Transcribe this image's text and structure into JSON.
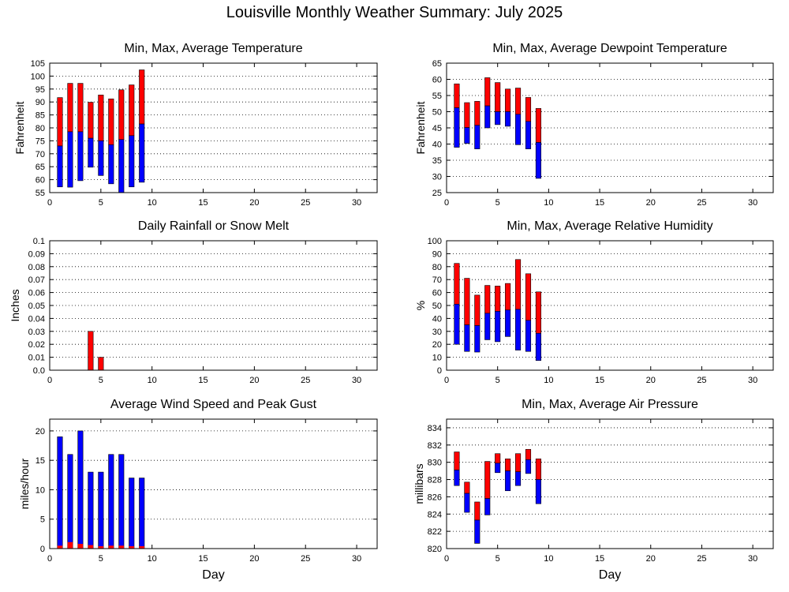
{
  "title": "Louisville Monthly Weather Summary: July 2025",
  "colors": {
    "max_part": "#ff0000",
    "min_part": "#0000ff",
    "outline": "#000000",
    "grid": "#000000"
  },
  "chart_data": [
    {
      "id": "temperature",
      "type": "bar",
      "style": "floating-stacked",
      "title": "Min, Max, Average Temperature",
      "xlabel": "",
      "ylabel": "Fahrenheit",
      "xlim": [
        0,
        32
      ],
      "ylim": [
        55,
        105
      ],
      "xticks": [
        0,
        5,
        10,
        15,
        20,
        25,
        30
      ],
      "yticks": [
        55,
        60,
        65,
        70,
        75,
        80,
        85,
        90,
        95,
        100,
        105
      ],
      "grid": "horizontal dotted",
      "legend": "none",
      "x": [
        1,
        2,
        3,
        4,
        5,
        6,
        7,
        8,
        9
      ],
      "series": [
        {
          "name": "min",
          "values": [
            57.2,
            57.1,
            59.6,
            64.8,
            61.6,
            58.4,
            55.0,
            57.2,
            59.0
          ]
        },
        {
          "name": "average",
          "values": [
            73.0,
            78.5,
            78.5,
            76.0,
            75.0,
            73.5,
            75.5,
            77.0,
            81.5
          ]
        },
        {
          "name": "max",
          "values": [
            91.7,
            97.2,
            97.2,
            89.9,
            92.7,
            91.2,
            94.7,
            96.6,
            102.4
          ]
        }
      ]
    },
    {
      "id": "dewpoint",
      "type": "bar",
      "style": "floating-stacked",
      "title": "Min, Max, Average Dewpoint Temperature",
      "xlabel": "",
      "ylabel": "Fahrenheit",
      "xlim": [
        0,
        32
      ],
      "ylim": [
        25,
        65
      ],
      "xticks": [
        0,
        5,
        10,
        15,
        20,
        25,
        30
      ],
      "yticks": [
        25,
        30,
        35,
        40,
        45,
        50,
        55,
        60,
        65
      ],
      "grid": "horizontal dotted",
      "legend": "none",
      "x": [
        1,
        2,
        3,
        4,
        5,
        6,
        7,
        8,
        9
      ],
      "series": [
        {
          "name": "min",
          "values": [
            39.0,
            40.2,
            38.5,
            45.0,
            46.0,
            45.5,
            39.8,
            38.5,
            29.4
          ]
        },
        {
          "name": "average",
          "values": [
            51.2,
            45.1,
            45.8,
            51.8,
            50.0,
            50.0,
            49.2,
            47.0,
            40.5
          ]
        },
        {
          "name": "max",
          "values": [
            58.6,
            52.8,
            53.2,
            60.5,
            59.0,
            57.0,
            57.3,
            54.4,
            51.0
          ]
        }
      ]
    },
    {
      "id": "rainfall",
      "type": "bar",
      "style": "floating-stacked",
      "title": "Daily Rainfall or Snow Melt",
      "xlabel": "",
      "ylabel": "Inches",
      "xlim": [
        0,
        32
      ],
      "ylim": [
        0,
        0.1
      ],
      "xticks": [
        0,
        5,
        10,
        15,
        20,
        25,
        30
      ],
      "yticks": [
        "0.0",
        "0.01",
        "0.02",
        "0.03",
        "0.04",
        "0.05",
        "0.06",
        "0.07",
        "0.08",
        "0.09",
        "0.1"
      ],
      "grid": "horizontal dotted",
      "legend": "none",
      "x": [
        1,
        2,
        3,
        4,
        5,
        6,
        7,
        8,
        9
      ],
      "series": [
        {
          "name": "min",
          "values": [
            0,
            0,
            0,
            0,
            0,
            0,
            0,
            0,
            0
          ]
        },
        {
          "name": "average",
          "values": [
            0,
            0,
            0,
            0,
            0,
            0,
            0,
            0,
            0
          ]
        },
        {
          "name": "max",
          "values": [
            0,
            0,
            0,
            0.03,
            0.01,
            0,
            0,
            0,
            0
          ]
        }
      ]
    },
    {
      "id": "humidity",
      "type": "bar",
      "style": "floating-stacked",
      "title": "Min, Max, Average Relative Humidity",
      "xlabel": "",
      "ylabel": "%",
      "xlim": [
        0,
        32
      ],
      "ylim": [
        0,
        100
      ],
      "xticks": [
        0,
        5,
        10,
        15,
        20,
        25,
        30
      ],
      "yticks": [
        0,
        10,
        20,
        30,
        40,
        50,
        60,
        70,
        80,
        90,
        100
      ],
      "grid": "horizontal dotted",
      "legend": "none",
      "x": [
        1,
        2,
        3,
        4,
        5,
        6,
        7,
        8,
        9
      ],
      "series": [
        {
          "name": "min",
          "values": [
            20.0,
            14.5,
            14.0,
            23.5,
            22.0,
            26.0,
            15.5,
            14.5,
            7.5
          ]
        },
        {
          "name": "average",
          "values": [
            51.0,
            35.0,
            34.5,
            44.0,
            45.5,
            46.5,
            47.0,
            38.5,
            28.5
          ]
        },
        {
          "name": "max",
          "values": [
            82.5,
            71.0,
            58.0,
            65.5,
            65.0,
            67.0,
            85.5,
            74.5,
            60.5
          ]
        }
      ]
    },
    {
      "id": "wind",
      "type": "bar",
      "style": "overlay",
      "title": "Average Wind Speed and Peak Gust",
      "xlabel": "Day",
      "ylabel": "miles/hour",
      "xlim": [
        0,
        32
      ],
      "ylim": [
        0,
        22
      ],
      "xticks": [
        0,
        5,
        10,
        15,
        20,
        25,
        30
      ],
      "yticks": [
        0,
        5,
        10,
        15,
        20
      ],
      "grid": "horizontal dotted",
      "legend": "none",
      "x": [
        1,
        2,
        3,
        4,
        5,
        6,
        7,
        8,
        9
      ],
      "series": [
        {
          "name": "peak gust",
          "values": [
            19,
            16,
            20,
            13,
            13,
            16,
            16,
            12,
            12
          ]
        },
        {
          "name": "average",
          "values": [
            0.5,
            1.1,
            0.8,
            0.6,
            0.4,
            0.5,
            0.5,
            0.4,
            0.4
          ]
        }
      ]
    },
    {
      "id": "pressure",
      "type": "bar",
      "style": "floating-stacked",
      "title": "Min, Max, Average Air Pressure",
      "xlabel": "Day",
      "ylabel": "millibars",
      "xlim": [
        0,
        32
      ],
      "ylim": [
        820,
        835
      ],
      "xticks": [
        0,
        5,
        10,
        15,
        20,
        25,
        30
      ],
      "yticks": [
        820,
        822,
        824,
        826,
        828,
        830,
        832,
        834
      ],
      "grid": "horizontal dotted",
      "legend": "none",
      "x": [
        1,
        2,
        3,
        4,
        5,
        6,
        7,
        8,
        9
      ],
      "series": [
        {
          "name": "min",
          "values": [
            827.3,
            824.2,
            820.6,
            823.9,
            828.8,
            826.7,
            827.3,
            828.7,
            825.2
          ]
        },
        {
          "name": "average",
          "values": [
            829.1,
            826.4,
            823.3,
            825.8,
            829.9,
            829.0,
            828.9,
            830.3,
            828.0
          ]
        },
        {
          "name": "max",
          "values": [
            831.2,
            827.7,
            825.4,
            830.1,
            831.0,
            830.4,
            831.0,
            831.5,
            830.4
          ]
        }
      ]
    }
  ]
}
